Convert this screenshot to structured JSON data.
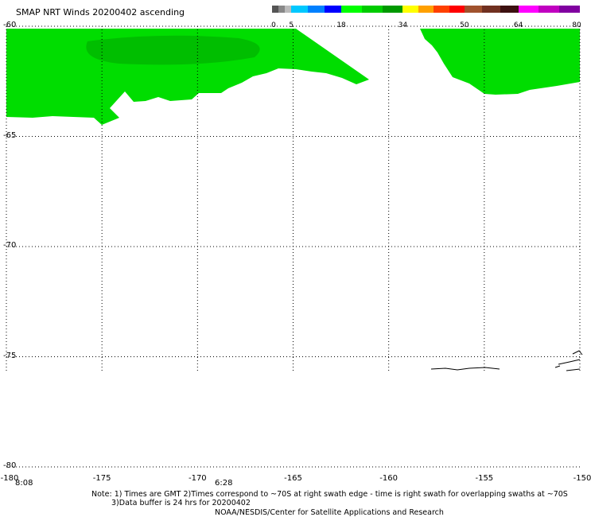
{
  "title": "SMAP NRT Winds 20200402 ascending",
  "colorbar": {
    "labels": [
      "0",
      "5",
      "18",
      "34",
      "50",
      "64",
      "80"
    ],
    "segments": [
      {
        "from": 0,
        "to": 5,
        "colors": [
          "#555555",
          "#888888",
          "#bbbbbb"
        ]
      },
      {
        "from": 5,
        "to": 18,
        "colors": [
          "#00c8ff",
          "#0080ff",
          "#0000ff"
        ]
      },
      {
        "from": 18,
        "to": 34,
        "colors": [
          "#00ff00",
          "#00cc00",
          "#009900"
        ]
      },
      {
        "from": 34,
        "to": 50,
        "colors": [
          "#ffff00",
          "#ffa000",
          "#ff4000",
          "#ff0000"
        ]
      },
      {
        "from": 50,
        "to": 64,
        "colors": [
          "#a0522d",
          "#703020",
          "#3c1010"
        ]
      },
      {
        "from": 64,
        "to": 80,
        "colors": [
          "#ff00ff",
          "#c000c0",
          "#8000a0"
        ]
      }
    ]
  },
  "map": {
    "lon_range": [
      -180,
      -150
    ],
    "lat_range": [
      -80,
      -60
    ],
    "lat_lines": [
      -60,
      -65,
      -70,
      -75,
      -80
    ],
    "lon_lines": [
      -175,
      -170,
      -165,
      -160,
      -155
    ],
    "lat_labels": [
      "-60",
      "-65",
      "-70",
      "-75",
      "-80"
    ],
    "lon_labels": [
      "-180",
      "-175",
      "-170",
      "-165",
      "-160",
      "-155",
      "-150"
    ],
    "swath_color": "#00dd00",
    "swath_dark_color": "#009900",
    "coast_color": "#000000",
    "grid": "dotted"
  },
  "times": [
    "8:08",
    "6:28"
  ],
  "notes": {
    "line1": "Note: 1) Times are GMT 2)Times correspond to ~70S at right swath edge - time is right swath for overlapping swaths at ~70S",
    "line2": "3)Data buffer is 24 hrs for 20200402",
    "line3": "NOAA/NESDIS/Center for Satellite Applications and Research"
  }
}
